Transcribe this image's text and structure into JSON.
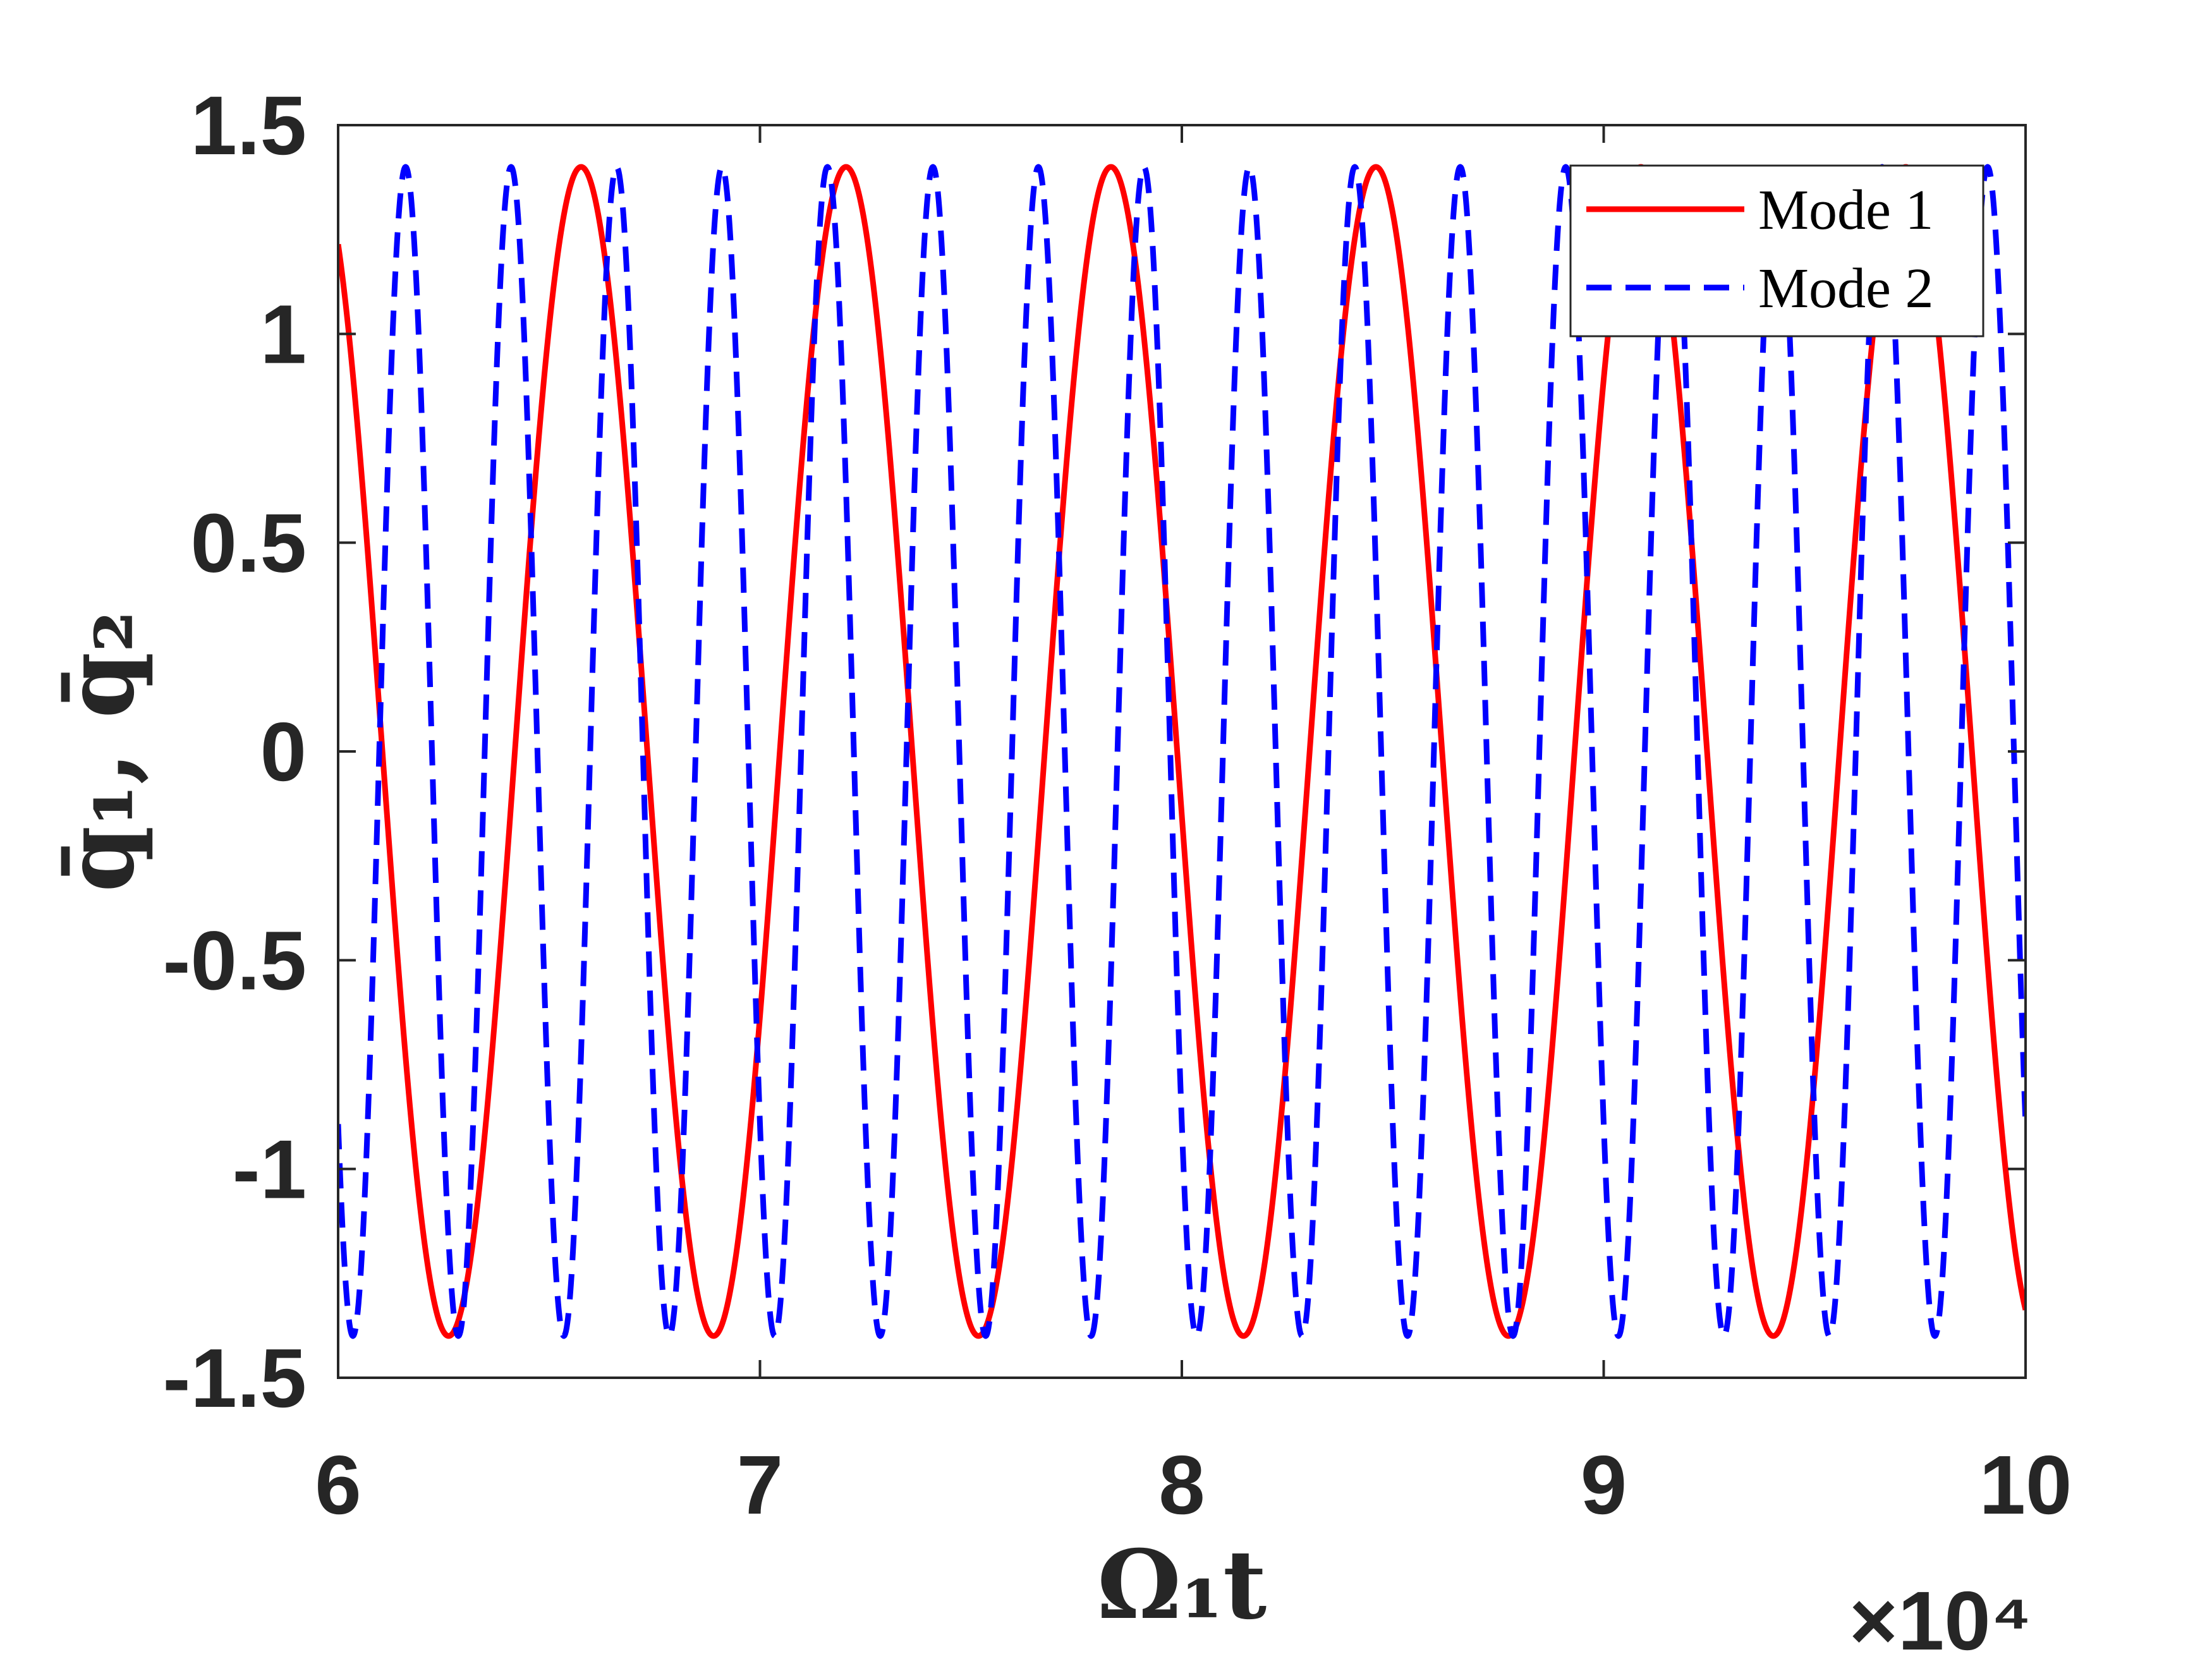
{
  "chart_data": {
    "type": "line",
    "xlabel": "Ω₁t",
    "ylabel": "q̄₁, q̄₂",
    "x_exponent_label": "×10⁴",
    "xlim": [
      6,
      10
    ],
    "ylim": [
      -1.5,
      1.5
    ],
    "x_ticks": [
      {
        "value": 6,
        "label": "6"
      },
      {
        "value": 7,
        "label": "7"
      },
      {
        "value": 8,
        "label": "8"
      },
      {
        "value": 9,
        "label": "9"
      },
      {
        "value": 10,
        "label": "10"
      }
    ],
    "y_ticks": [
      {
        "value": 1.5,
        "label": "1.5"
      },
      {
        "value": 1,
        "label": "1"
      },
      {
        "value": 0.5,
        "label": "0.5"
      },
      {
        "value": 0,
        "label": "0"
      },
      {
        "value": -0.5,
        "label": "-0.5"
      },
      {
        "value": -1,
        "label": "-1"
      },
      {
        "value": -1.5,
        "label": "-1.5"
      }
    ],
    "grid": false,
    "legend_position": "top-right",
    "series": [
      {
        "name": "Mode 1",
        "color": "#ff0000",
        "style": "solid",
        "amplitude": 1.4,
        "period": 0.628,
        "first_peak_x": 6.576
      },
      {
        "name": "Mode 2",
        "color": "#0000ff",
        "style": "dashed",
        "amplitude": 1.4,
        "period": 0.25,
        "first_peak_x": 6.16
      }
    ]
  }
}
